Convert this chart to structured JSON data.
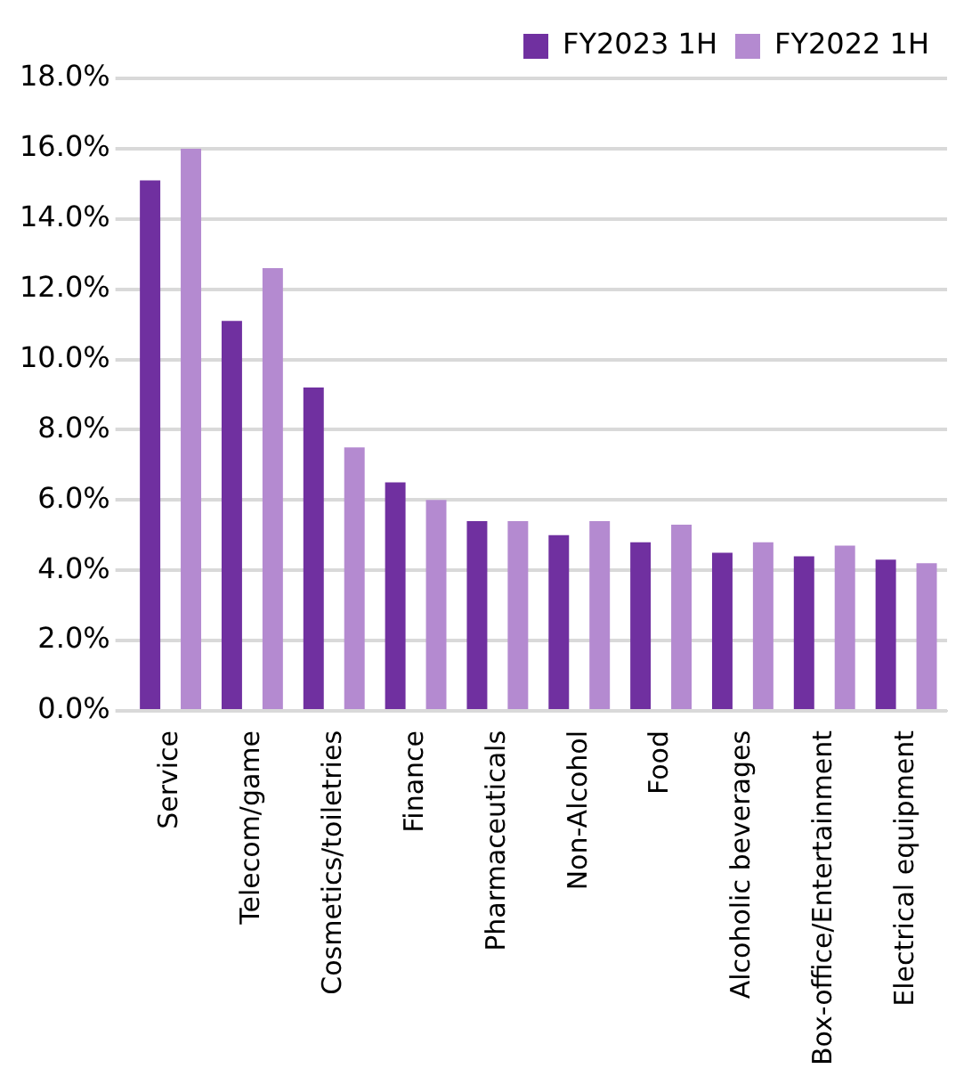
{
  "chart_data": {
    "type": "bar",
    "categories": [
      "Service",
      "Telecom/game",
      "Cosmetics/toiletries",
      "Finance",
      "Pharmaceuticals",
      "Non-Alcohol",
      "Food",
      "Alcoholic beverages",
      "Box-office/Entertainment",
      "Electrical equipment"
    ],
    "series": [
      {
        "name": "FY2023 1H",
        "color": "#7030a0",
        "values": [
          15.1,
          11.1,
          9.2,
          6.5,
          5.4,
          5.0,
          4.8,
          4.5,
          4.4,
          4.3
        ]
      },
      {
        "name": "FY2022 1H",
        "color": "#b48ad0",
        "values": [
          16.0,
          12.6,
          7.5,
          6.0,
          5.4,
          5.4,
          5.3,
          4.8,
          4.7,
          4.2
        ]
      }
    ],
    "ylim": [
      0,
      18
    ],
    "yticks": [
      {
        "value": 0,
        "label": "0.0%"
      },
      {
        "value": 2,
        "label": "2.0%"
      },
      {
        "value": 4,
        "label": "4.0%"
      },
      {
        "value": 6,
        "label": "6.0%"
      },
      {
        "value": 8,
        "label": "8.0%"
      },
      {
        "value": 10,
        "label": "10.0%"
      },
      {
        "value": 12,
        "label": "12.0%"
      },
      {
        "value": 14,
        "label": "14.0%"
      },
      {
        "value": 16,
        "label": "16.0%"
      },
      {
        "value": 18,
        "label": "18.0%"
      }
    ],
    "grid": "y",
    "legend": "top right"
  }
}
